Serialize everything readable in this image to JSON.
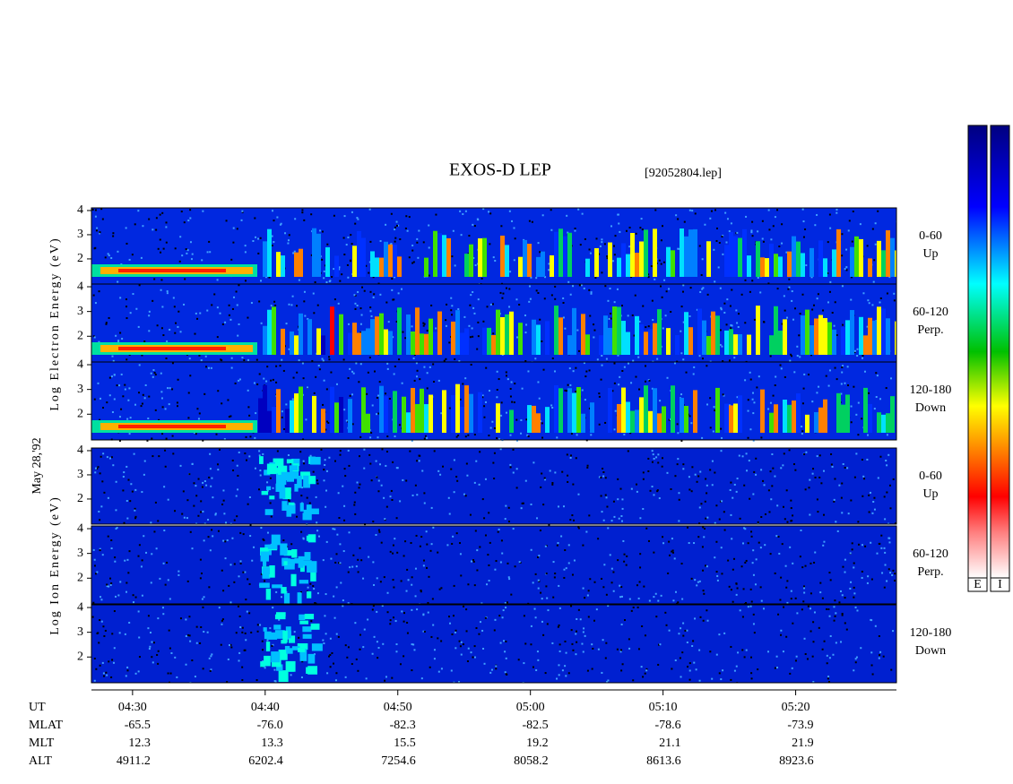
{
  "chart_data": {
    "type": "spectrogram",
    "title": "EXOS-D LEP",
    "subtitle": "[92052804.lep]",
    "date_label": "May 28,'92",
    "xlabel": "UT",
    "xlim": [
      266.9,
      327.6
    ],
    "xticks": [
      {
        "value": 270,
        "label": "04:30"
      },
      {
        "value": 280,
        "label": "04:40"
      },
      {
        "value": 290,
        "label": "04:50"
      },
      {
        "value": 300,
        "label": "05:00"
      },
      {
        "value": 310,
        "label": "05:10"
      },
      {
        "value": 320,
        "label": "05:20"
      }
    ],
    "ylim": [
      0.96,
      4.11
    ],
    "yticks": [
      2,
      3,
      4
    ],
    "groups": [
      {
        "ylabel": "Log Electron Energy (eV)",
        "panels": [
          {
            "angle": "0-60",
            "direction": "Up"
          },
          {
            "angle": "60-120",
            "direction": "Perp."
          },
          {
            "angle": "120-180",
            "direction": "Down"
          }
        ]
      },
      {
        "ylabel": "Log Ion Energy (eV)",
        "panels": [
          {
            "angle": "0-60",
            "direction": "Up"
          },
          {
            "angle": "60-120",
            "direction": "Perp."
          },
          {
            "angle": "120-180",
            "direction": "Down"
          }
        ]
      }
    ],
    "ephemeris": [
      {
        "name": "MLAT",
        "values": [
          "-65.5",
          "-76.0",
          "-82.3",
          "-82.5",
          "-78.6",
          "-73.9"
        ]
      },
      {
        "name": "MLT",
        "values": [
          "12.3",
          "13.3",
          "15.5",
          "19.2",
          "21.1",
          "21.9"
        ]
      },
      {
        "name": "ALT",
        "values": [
          "4911.2",
          "6202.4",
          "7254.6",
          "8058.2",
          "8613.6",
          "8923.6"
        ]
      }
    ],
    "colorbars": [
      "E",
      "I"
    ]
  }
}
